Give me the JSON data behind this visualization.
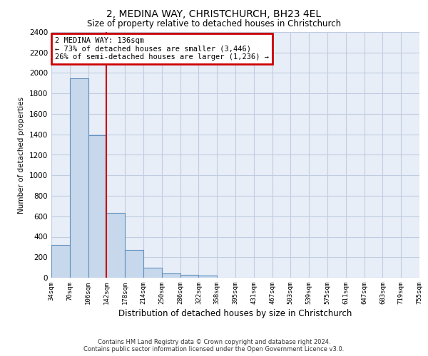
{
  "title1": "2, MEDINA WAY, CHRISTCHURCH, BH23 4EL",
  "title2": "Size of property relative to detached houses in Christchurch",
  "xlabel": "Distribution of detached houses by size in Christchurch",
  "ylabel": "Number of detached properties",
  "bar_values": [
    320,
    1950,
    1390,
    630,
    270,
    95,
    45,
    30,
    20,
    0,
    0,
    0,
    0,
    0,
    0,
    0,
    0,
    0,
    0,
    0
  ],
  "bin_labels": [
    "34sqm",
    "70sqm",
    "106sqm",
    "142sqm",
    "178sqm",
    "214sqm",
    "250sqm",
    "286sqm",
    "322sqm",
    "358sqm",
    "395sqm",
    "431sqm",
    "467sqm",
    "503sqm",
    "539sqm",
    "575sqm",
    "611sqm",
    "647sqm",
    "683sqm",
    "719sqm",
    "755sqm"
  ],
  "bar_color": "#c8d8ec",
  "bar_edge_color": "#6090c0",
  "annotation_title": "2 MEDINA WAY: 136sqm",
  "annotation_line1": "← 73% of detached houses are smaller (3,446)",
  "annotation_line2": "26% of semi-detached houses are larger (1,236) →",
  "vline_color": "#cc0000",
  "annotation_box_edge_color": "#cc0000",
  "ylim": [
    0,
    2400
  ],
  "yticks": [
    0,
    200,
    400,
    600,
    800,
    1000,
    1200,
    1400,
    1600,
    1800,
    2000,
    2200,
    2400
  ],
  "footnote1": "Contains HM Land Registry data © Crown copyright and database right 2024.",
  "footnote2": "Contains public sector information licensed under the Open Government Licence v3.0.",
  "plot_bg_color": "#e8eef8",
  "fig_bg_color": "#ffffff",
  "grid_color": "#c0cce0"
}
